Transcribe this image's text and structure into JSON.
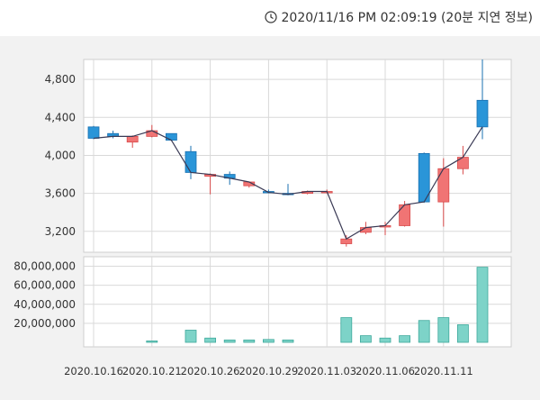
{
  "header": {
    "timestamp": "2020/11/16 PM 02:09:19 (20분 지연 정보)",
    "clock_icon": "clock-icon"
  },
  "colors": {
    "up": "#f07474",
    "up_border": "#d94a4a",
    "down": "#2a95d8",
    "down_border": "#1a70b0",
    "volume": "#7dd3c8",
    "volume_border": "#3ea99c",
    "line": "#3a3a55",
    "panel_bg": "#f2f2f2",
    "grid": "#d9d9d9"
  },
  "chart_data": {
    "type": "candlestick",
    "price_axis": {
      "ticks": [
        "3,200",
        "3,600",
        "4,000",
        "4,400",
        "4,800"
      ],
      "tick_values": [
        3200,
        3600,
        4000,
        4400,
        4800
      ],
      "ylim": [
        2980,
        5010
      ]
    },
    "volume_axis": {
      "ticks": [
        "20,000,000",
        "40,000,000",
        "60,000,000",
        "80,000,000"
      ],
      "tick_values": [
        20000000,
        40000000,
        60000000,
        80000000
      ],
      "ylim": [
        0,
        90000000
      ]
    },
    "x_labels": [
      "2020.10.16",
      "2020.10.21",
      "2020.10.26",
      "2020.10.29",
      "2020.11.03",
      "2020.11.06",
      "2020.11.11"
    ],
    "x_label_index": [
      0,
      3,
      6,
      9,
      12,
      15,
      18
    ],
    "candles": [
      {
        "date": "2020.10.16",
        "open": 4300,
        "high": 4310,
        "low": 4170,
        "close": 4180
      },
      {
        "date": "2020.10.19",
        "open": 4230,
        "high": 4260,
        "low": 4180,
        "close": 4200
      },
      {
        "date": "2020.10.20",
        "open": 4140,
        "high": 4210,
        "low": 4080,
        "close": 4200
      },
      {
        "date": "2020.10.21",
        "open": 4200,
        "high": 4320,
        "low": 4190,
        "close": 4260
      },
      {
        "date": "2020.10.22",
        "open": 4230,
        "high": 4230,
        "low": 4150,
        "close": 4160
      },
      {
        "date": "2020.10.23",
        "open": 4040,
        "high": 4100,
        "low": 3750,
        "close": 3820
      },
      {
        "date": "2020.10.26",
        "open": 3780,
        "high": 3810,
        "low": 3590,
        "close": 3800
      },
      {
        "date": "2020.10.27",
        "open": 3800,
        "high": 3830,
        "low": 3690,
        "close": 3760
      },
      {
        "date": "2020.10.28",
        "open": 3680,
        "high": 3720,
        "low": 3660,
        "close": 3720
      },
      {
        "date": "2020.10.29",
        "open": 3620,
        "high": 3640,
        "low": 3600,
        "close": 3610
      },
      {
        "date": "2020.10.30",
        "open": 3600,
        "high": 3700,
        "low": 3580,
        "close": 3590
      },
      {
        "date": "2020.11.02",
        "open": 3600,
        "high": 3630,
        "low": 3590,
        "close": 3620
      },
      {
        "date": "2020.11.03",
        "open": 3620,
        "high": 3640,
        "low": 3600,
        "close": 3620
      },
      {
        "date": "2020.11.04",
        "open": 3070,
        "high": 3160,
        "low": 3040,
        "close": 3120
      },
      {
        "date": "2020.11.05",
        "open": 3190,
        "high": 3300,
        "low": 3170,
        "close": 3240
      },
      {
        "date": "2020.11.06",
        "open": 3250,
        "high": 3300,
        "low": 3160,
        "close": 3260
      },
      {
        "date": "2020.11.09",
        "open": 3260,
        "high": 3520,
        "low": 3250,
        "close": 3480
      },
      {
        "date": "2020.11.10",
        "open": 4020,
        "high": 4030,
        "low": 3500,
        "close": 3510
      },
      {
        "date": "2020.11.11",
        "open": 3510,
        "high": 3970,
        "low": 3250,
        "close": 3860
      },
      {
        "date": "2020.11.12",
        "open": 3860,
        "high": 4100,
        "low": 3800,
        "close": 3980
      },
      {
        "date": "2020.11.13",
        "open": 4580,
        "high": 5010,
        "low": 4170,
        "close": 4300
      }
    ],
    "volumes": [
      0,
      0,
      0,
      1500000,
      0,
      12800000,
      4500000,
      2500000,
      2500000,
      3000000,
      2500000,
      0,
      0,
      26000000,
      7000000,
      4500000,
      7000000,
      23000000,
      26000000,
      18500000,
      79000000
    ]
  }
}
